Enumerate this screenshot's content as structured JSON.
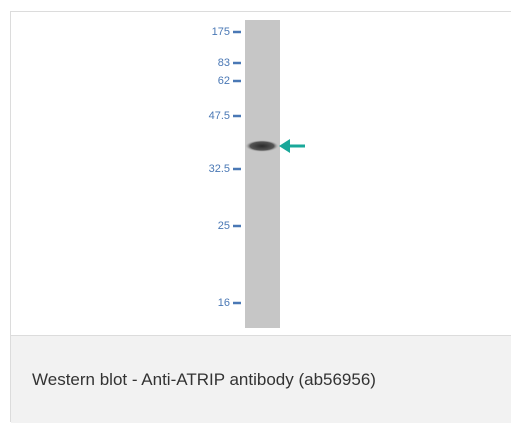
{
  "blot": {
    "markers": [
      "175",
      "83",
      "62",
      "47.5",
      "32.5",
      "25",
      "16"
    ]
  },
  "caption": "Western blot - Anti-ATRIP antibody (ab56956)"
}
